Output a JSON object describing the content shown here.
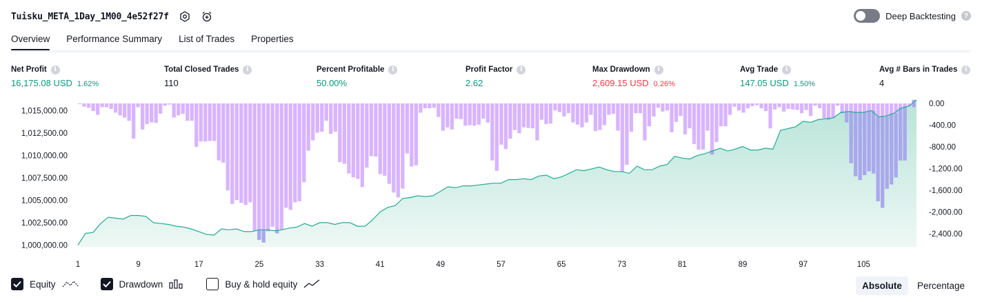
{
  "header": {
    "strategy_name": "Tuisku_META_1Day_1M00_4e52f27f",
    "icons": [
      "settings-hex-icon",
      "alarm-add-icon"
    ],
    "deep_backtesting_label": "Deep Backtesting",
    "deep_backtesting_enabled": false
  },
  "tabs": [
    {
      "label": "Overview",
      "active": true
    },
    {
      "label": "Performance Summary",
      "active": false
    },
    {
      "label": "List of Trades",
      "active": false
    },
    {
      "label": "Properties",
      "active": false
    }
  ],
  "metrics": {
    "net_profit": {
      "label": "Net Profit",
      "value": "16,175.08 USD",
      "pct": "1.62%"
    },
    "total_closed_trades": {
      "label": "Total Closed Trades",
      "value": "110"
    },
    "percent_profitable": {
      "label": "Percent Profitable",
      "value": "50.00%"
    },
    "profit_factor": {
      "label": "Profit Factor",
      "value": "2.62"
    },
    "max_drawdown": {
      "label": "Max Drawdown",
      "value": "2,609.15 USD",
      "pct": "0.26%"
    },
    "avg_trade": {
      "label": "Avg Trade",
      "value": "147.05 USD",
      "pct": "1.50%"
    },
    "avg_bars_in_trades": {
      "label": "Avg # Bars in Trades",
      "value": "4"
    }
  },
  "colors": {
    "positive": "#089981",
    "negative": "#f23645",
    "equity_line": "#22ab94",
    "equity_fill": "#d8f0ea",
    "drawdown_bar": "#d8b4fe",
    "drawdown_bar_overlap": "#a9a8ec"
  },
  "chart_data": {
    "type": "area",
    "left_axis": {
      "ticks": [
        "1,015,000.00",
        "1,012,500.00",
        "1,010,000.00",
        "1,007,500.00",
        "1,005,000.00",
        "1,002,500.00",
        "1,000,000.00"
      ],
      "range": [
        999800,
        1015800
      ]
    },
    "right_axis": {
      "ticks": [
        "0.00",
        "-400.00",
        "-800.00",
        "-1,200.00",
        "-1,600.00",
        "-2,000.00",
        "-2,400.00"
      ],
      "range": [
        -2640,
        0
      ]
    },
    "x_ticks": [
      "1",
      "9",
      "17",
      "25",
      "33",
      "41",
      "49",
      "57",
      "65",
      "73",
      "81",
      "89",
      "97",
      "105"
    ],
    "grid": false,
    "series": [
      {
        "name": "Equity",
        "values": [
          1000000,
          1001300,
          1001400,
          1002400,
          1003100,
          1003000,
          1002900,
          1003300,
          1003300,
          1003200,
          1002500,
          1002400,
          1002300,
          1002100,
          1002000,
          1001800,
          1001500,
          1001200,
          1001100,
          1001800,
          1001700,
          1001800,
          1001500,
          1001500,
          1001700,
          1001700,
          1001600,
          1001700,
          1001900,
          1002000,
          1002400,
          1002100,
          1002500,
          1002500,
          1002300,
          1002500,
          1002500,
          1002100,
          1002100,
          1002800,
          1003700,
          1004200,
          1004400,
          1005200,
          1005300,
          1005500,
          1005400,
          1005500,
          1006000,
          1006500,
          1006400,
          1006600,
          1006600,
          1006700,
          1006800,
          1006900,
          1006900,
          1007300,
          1007300,
          1007400,
          1007300,
          1007700,
          1007800,
          1007400,
          1007600,
          1008000,
          1008400,
          1008300,
          1008500,
          1008700,
          1008400,
          1008200,
          1008200,
          1008000,
          1008800,
          1008400,
          1008400,
          1008800,
          1009000,
          1009900,
          1009700,
          1009600,
          1010000,
          1010200,
          1010500,
          1010800,
          1010500,
          1010700,
          1011000,
          1010600,
          1010600,
          1010800,
          1010700,
          1012800,
          1013000,
          1013200,
          1013800,
          1013700,
          1014000,
          1014100,
          1014200,
          1014800,
          1014900,
          1014800,
          1014800,
          1015000,
          1014300,
          1014400,
          1014700,
          1015300,
          1015500,
          1016200
        ]
      },
      {
        "name": "Drawdown",
        "values": [
          0,
          -60,
          -80,
          -140,
          -210,
          -70,
          -70,
          -100,
          -170,
          -220,
          -260,
          -320,
          -650,
          -70,
          -480,
          -380,
          -350,
          -360,
          -190,
          -40,
          -20,
          -260,
          -220,
          -190,
          -320,
          -320,
          -800,
          -700,
          -700,
          -690,
          -690,
          -1050,
          -1090,
          -1600,
          -1850,
          -1780,
          -1830,
          -1870,
          -1820,
          -2350,
          -2510,
          -2560,
          -2350,
          -2270,
          -2390,
          -2320,
          -1920,
          -1960,
          -1820,
          -1800,
          -1450,
          -870,
          -680,
          -540,
          -520,
          -320,
          -560,
          -520,
          -1080,
          -1110,
          -1290,
          -1360,
          -1390,
          -1540,
          -1180,
          -970,
          -980,
          -1300,
          -1330,
          -1480,
          -1640,
          -1730,
          -1570,
          -920,
          -1160,
          -1140,
          -170,
          -90,
          -90,
          -80,
          -250,
          -500,
          -440,
          -480,
          -280,
          -290,
          -410,
          -400,
          -410,
          -390,
          -280,
          -350,
          -1050,
          -1240,
          -760,
          -840,
          -650,
          -490,
          -550,
          -440,
          -450,
          -460,
          -680,
          -300,
          -380,
          -370,
          -130,
          -160,
          -240,
          -180,
          -350,
          -390,
          -440,
          -350,
          -210,
          -510,
          -490,
          -400,
          -210,
          -190,
          -500,
          -1260,
          -1130,
          -520,
          -180,
          -180,
          -680,
          -420,
          -240,
          -80,
          -150,
          -130,
          -530,
          -340,
          -230,
          -570,
          -460,
          -750,
          -850,
          -850,
          -500,
          -940,
          -710,
          -420,
          -420,
          -210,
          -60,
          -130,
          -170,
          -90,
          -50,
          -30,
          -90,
          -140,
          -460,
          -110,
          -70,
          -150,
          -100,
          -110,
          -120,
          -180,
          -120,
          -230,
          -40,
          -90,
          -270,
          -300,
          -270,
          -40,
          -180,
          -350,
          -1100,
          -1340,
          -1410,
          -1320,
          -1250,
          -1290,
          -1800,
          -1920,
          -1570,
          -1490,
          -1360,
          -1050,
          -1050,
          -50,
          -70
        ]
      }
    ]
  },
  "legend": {
    "items": [
      {
        "label": "Equity",
        "checked": true,
        "icon": "equity-line-icon"
      },
      {
        "label": "Drawdown",
        "checked": true,
        "icon": "drawdown-bars-icon"
      },
      {
        "label": "Buy & hold equity",
        "checked": false,
        "icon": "buy-hold-line-icon"
      }
    ]
  },
  "mode": {
    "absolute_label": "Absolute",
    "percentage_label": "Percentage",
    "active": "absolute"
  }
}
